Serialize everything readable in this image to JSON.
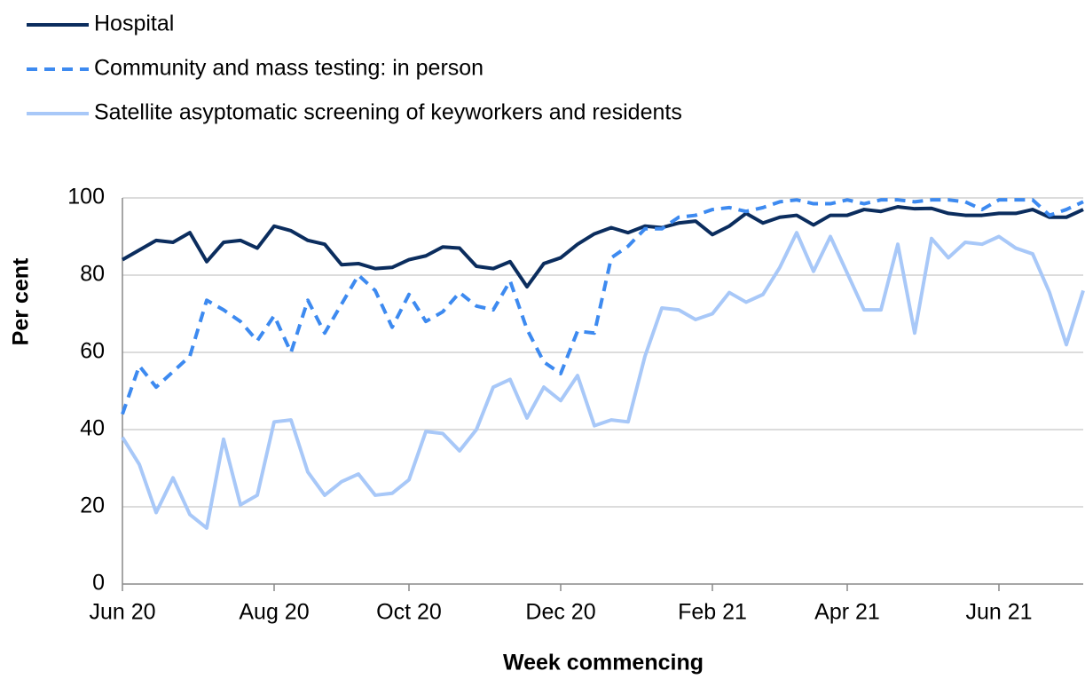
{
  "chart_data": {
    "type": "line",
    "xlabel": "Week commencing",
    "ylabel": "Per cent",
    "categories": [
      "Jun 20",
      null,
      null,
      null,
      null,
      null,
      null,
      null,
      null,
      "Aug 20",
      null,
      null,
      null,
      null,
      null,
      null,
      null,
      "Oct 20",
      null,
      null,
      null,
      null,
      null,
      null,
      null,
      null,
      "Dec 20",
      null,
      null,
      null,
      null,
      null,
      null,
      null,
      null,
      "Feb 21",
      null,
      null,
      null,
      null,
      null,
      null,
      null,
      "Apr 21",
      null,
      null,
      null,
      null,
      null,
      null,
      null,
      null,
      "Jun 21",
      null,
      null,
      null,
      null,
      null
    ],
    "series": [
      {
        "name": "Hospital",
        "color": "#0b2d5e",
        "dash": false,
        "values": [
          84,
          86.5,
          89,
          88.5,
          91,
          83.5,
          88.5,
          89,
          87,
          92.7,
          91.5,
          89,
          88,
          82.7,
          83,
          81.7,
          82,
          84,
          85,
          87.3,
          87,
          82.3,
          81.7,
          83.5,
          77,
          83,
          84.5,
          88,
          90.7,
          92.3,
          91,
          92.7,
          92.3,
          93.5,
          94,
          90.5,
          92.7,
          96,
          93.5,
          95,
          95.5,
          93,
          95.5,
          95.5,
          97,
          96.5,
          97.7,
          97.2,
          97.3,
          96,
          95.5,
          95.5,
          96,
          96,
          97,
          95,
          95,
          97
        ]
      },
      {
        "name": "Community and mass testing: in person",
        "color": "#3d8af0",
        "dash": true,
        "values": [
          44,
          56.5,
          51,
          55,
          59,
          73.5,
          71,
          68,
          63,
          69.5,
          60,
          73.5,
          65,
          72.5,
          80,
          76,
          66.5,
          75,
          68,
          70.5,
          75.5,
          72,
          71,
          78.5,
          66,
          57.5,
          54.5,
          65.5,
          65,
          84.5,
          87.5,
          92,
          92,
          95,
          95.5,
          97,
          97.5,
          96.5,
          97.5,
          99,
          99.5,
          98.5,
          98.5,
          99.5,
          98.5,
          99.5,
          99.5,
          99,
          99.5,
          99.5,
          99,
          97,
          99.5,
          99.5,
          99.5,
          95.5,
          97,
          99
        ]
      },
      {
        "name": "Satellite asyptomatic screening of keyworkers and residents",
        "color": "#a8c8f8",
        "dash": false,
        "values": [
          38,
          31,
          18.5,
          27.5,
          18,
          14.5,
          37.5,
          20.5,
          23,
          42,
          42.5,
          29,
          23,
          26.5,
          28.5,
          23,
          23.5,
          27,
          39.5,
          39,
          34.5,
          40,
          51,
          53,
          43,
          51,
          47.5,
          54,
          41,
          42.5,
          42,
          59,
          71.5,
          71,
          68.5,
          70,
          75.5,
          73,
          75,
          82,
          91,
          81,
          90,
          80.5,
          71,
          71,
          88,
          65,
          89.5,
          84.5,
          88.5,
          88,
          90,
          87,
          85.5,
          75.5,
          62,
          76
        ]
      }
    ],
    "ylim": [
      0,
      100
    ],
    "yticks": [
      0,
      20,
      40,
      60,
      80,
      100
    ],
    "grid": true
  }
}
